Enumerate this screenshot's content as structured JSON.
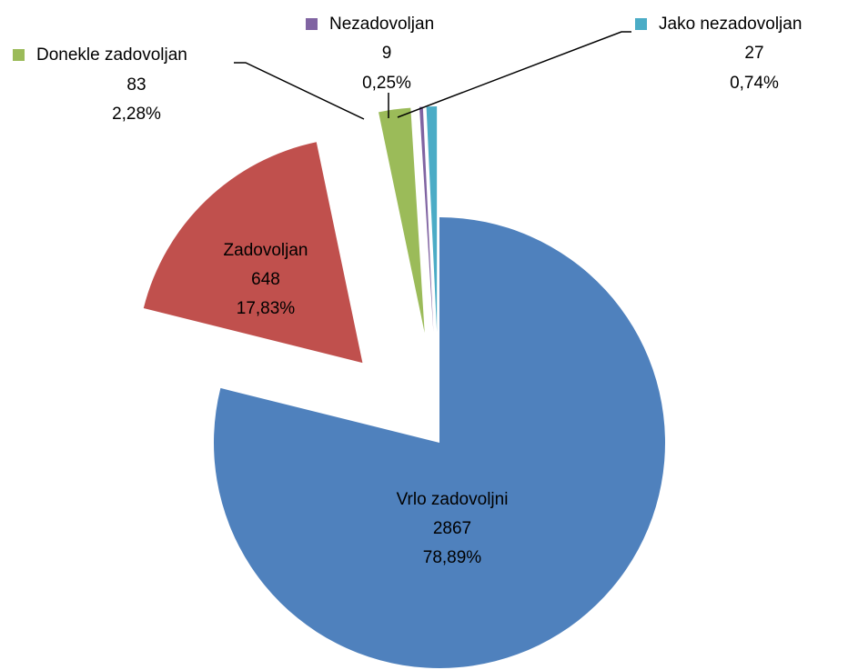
{
  "chart_data": {
    "type": "pie",
    "categories": [
      "Vrlo zadovoljni",
      "Zadovoljan",
      "Donekle zadovoljan",
      "Nezadovoljan",
      "Jako nezadovoljan"
    ],
    "values": [
      2867,
      648,
      83,
      9,
      27
    ],
    "percentages": [
      78.89,
      17.83,
      2.28,
      0.25,
      0.74
    ],
    "percentage_labels": [
      "78,89%",
      "17,83%",
      "2,28%",
      "0,25%",
      "0,74%"
    ],
    "colors": [
      "#4f81bd",
      "#c0504d",
      "#9bbb59",
      "#8064a2",
      "#4bacc6"
    ]
  }
}
